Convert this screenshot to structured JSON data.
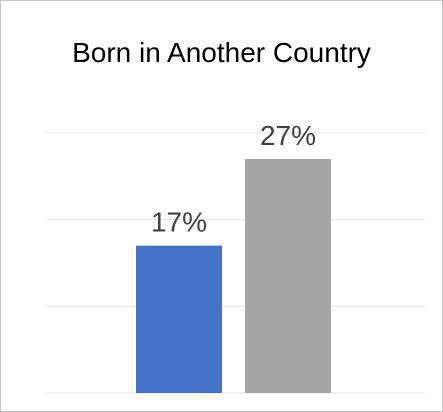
{
  "chart_data": {
    "type": "bar",
    "title": "Born in Another Country",
    "categories": [
      "",
      ""
    ],
    "values": [
      17,
      27
    ],
    "data_labels": [
      "17%",
      "27%"
    ],
    "colors": [
      "#4472c4",
      "#a5a5a5"
    ],
    "ylim": [
      0,
      30
    ],
    "grid": true,
    "legend": "none"
  }
}
